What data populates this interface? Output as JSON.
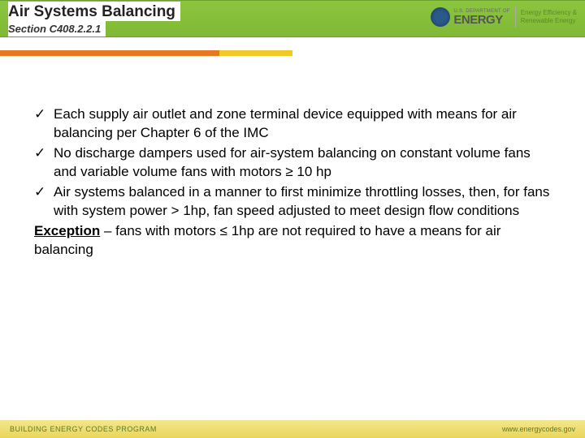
{
  "header": {
    "title": "Air Systems Balancing",
    "subtitle": "Section C408.2.2.1",
    "logo": {
      "dept_small": "U.S. DEPARTMENT OF",
      "dept_big": "ENERGY",
      "eere_line1": "Energy Efficiency &",
      "eere_line2": "Renewable Energy"
    },
    "colors": {
      "green_bar": "#8cc63f",
      "accent_orange": "#e87722",
      "accent_yellow": "#f0c929"
    }
  },
  "bullets": [
    "Each supply air outlet and zone terminal device equipped with means for air balancing per Chapter 6 of the IMC",
    "No discharge dampers used for air-system balancing on constant volume fans and variable volume fans with motors ≥ 10 hp",
    "Air systems balanced in a manner to first minimize throttling losses, then, for fans with system power > 1hp, fan speed adjusted to meet design flow conditions"
  ],
  "exception": {
    "label": "Exception",
    "text": " – fans with motors ≤ 1hp are not required to have a means for air balancing"
  },
  "footer": {
    "program": "BUILDING ENERGY CODES PROGRAM",
    "url": "www.energycodes.gov",
    "bg": "#e8d65a"
  }
}
